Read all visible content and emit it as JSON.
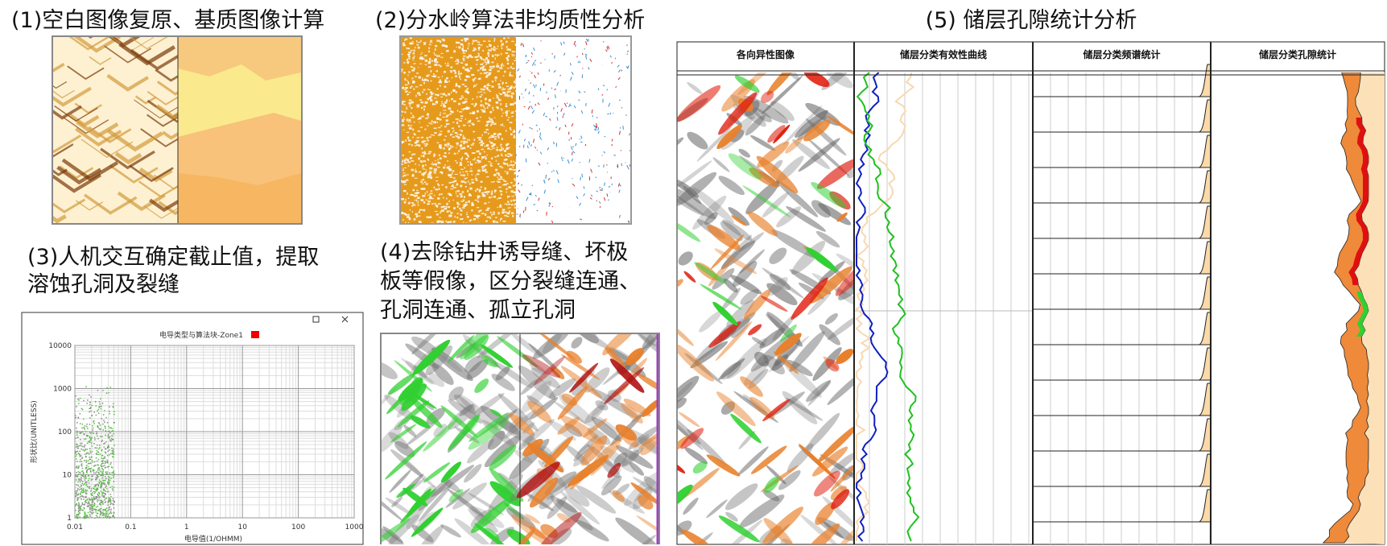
{
  "panel1": {
    "title": "(1)空白图像复原、基质图像计算"
  },
  "panel2": {
    "title": "(2)分水岭算法非均质性分析"
  },
  "panel3": {
    "title_lines": [
      "(3)人机交互确定截止值，提取",
      "溶蚀孔洞及裂缝"
    ],
    "plot": {
      "title": "电导类型与算法块-Zone1",
      "x_label": "电导值(1/OHMM)",
      "y_label": "形状比(UNITLESS)",
      "log_scale": true,
      "grid": true,
      "xlim": [
        0.01,
        1000
      ],
      "ylim": [
        1,
        10000
      ],
      "xticks": [
        0.01,
        0.1,
        1,
        10,
        100,
        1000
      ],
      "yticks": [
        1,
        10,
        100,
        1000,
        10000
      ]
    }
  },
  "panel4": {
    "title_lines": [
      "(4)去除钻井诱导缝、坏极",
      "板等假像，区分裂缝连通、",
      "孔洞连通、孤立孔洞"
    ]
  },
  "panel5": {
    "title": "(5) 储层孔隙统计分析",
    "columns": [
      "各向异性图像",
      "储层分类有效性曲线",
      "储层分类频谱统计",
      "储层分类孔隙统计"
    ]
  }
}
